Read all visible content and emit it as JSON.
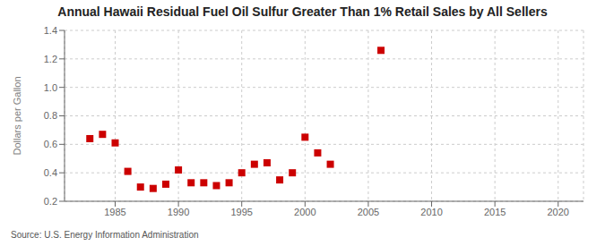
{
  "chart_data": {
    "type": "scatter",
    "title": "Annual Hawaii Residual Fuel Oil Sulfur Greater Than 1% Retail Sales by All Sellers",
    "ylabel": "Dollars per Gallon",
    "annotations": [
      "Source: U.S. Energy Information Administration"
    ],
    "x": [
      1983,
      1984,
      1985,
      1986,
      1987,
      1988,
      1989,
      1990,
      1991,
      1992,
      1993,
      1994,
      1995,
      1996,
      1997,
      1998,
      1999,
      2000,
      2001,
      2002,
      2006
    ],
    "values": [
      0.64,
      0.67,
      0.61,
      0.41,
      0.3,
      0.29,
      0.32,
      0.42,
      0.33,
      0.33,
      0.31,
      0.33,
      0.4,
      0.46,
      0.47,
      0.35,
      0.4,
      0.65,
      0.54,
      0.46,
      1.26
    ],
    "color": "#cc0000",
    "marker": "square",
    "xlim": [
      1981,
      2022
    ],
    "ylim": [
      0.2,
      1.4
    ],
    "xticks": [
      1985,
      1990,
      1995,
      2000,
      2005,
      2010,
      2015,
      2020
    ],
    "yticks": [
      0.2,
      0.4,
      0.6,
      {
        "value": 1.0,
        "label": "1.0"
      },
      0.8,
      1.2,
      1.4
    ],
    "grid": true
  }
}
